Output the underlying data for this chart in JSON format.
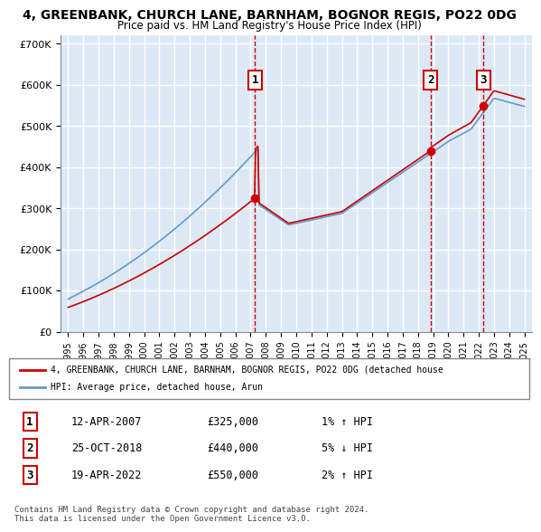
{
  "title_line1": "4, GREENBANK, CHURCH LANE, BARNHAM, BOGNOR REGIS, PO22 0DG",
  "title_line2": "Price paid vs. HM Land Registry's House Price Index (HPI)",
  "bg_color": "#dce9f5",
  "plot_bg_color": "#dce9f5",
  "grid_color": "#ffffff",
  "transaction_color": "#cc0000",
  "hpi_color": "#6699cc",
  "sale_marker_color": "#cc0000",
  "sale_marker_bg": "#cc0000",
  "dashed_line_color": "#cc0000",
  "transactions": [
    {
      "date_num": 2007.28,
      "price": 325000,
      "label": "1"
    },
    {
      "date_num": 2018.82,
      "price": 440000,
      "label": "2"
    },
    {
      "date_num": 2022.3,
      "price": 550000,
      "label": "3"
    }
  ],
  "legend_entries": [
    "4, GREENBANK, CHURCH LANE, BARNHAM, BOGNOR REGIS, PO22 0DG (detached house",
    "HPI: Average price, detached house, Arun"
  ],
  "table_entries": [
    {
      "num": "1",
      "date": "12-APR-2007",
      "price": "£325,000",
      "note": "1% ↑ HPI"
    },
    {
      "num": "2",
      "date": "25-OCT-2018",
      "price": "£440,000",
      "note": "5% ↓ HPI"
    },
    {
      "num": "3",
      "date": "19-APR-2022",
      "price": "£550,000",
      "note": "2% ↑ HPI"
    }
  ],
  "footer": "Contains HM Land Registry data © Crown copyright and database right 2024.\nThis data is licensed under the Open Government Licence v3.0.",
  "ylim": [
    0,
    720000
  ],
  "yticks": [
    0,
    100000,
    200000,
    300000,
    400000,
    500000,
    600000,
    700000
  ],
  "xlim_start": 1994.5,
  "xlim_end": 2025.5,
  "xticks": [
    1995,
    1996,
    1997,
    1998,
    1999,
    2000,
    2001,
    2002,
    2003,
    2004,
    2005,
    2006,
    2007,
    2008,
    2009,
    2010,
    2011,
    2012,
    2013,
    2014,
    2015,
    2016,
    2017,
    2018,
    2019,
    2020,
    2021,
    2022,
    2023,
    2024,
    2025
  ]
}
